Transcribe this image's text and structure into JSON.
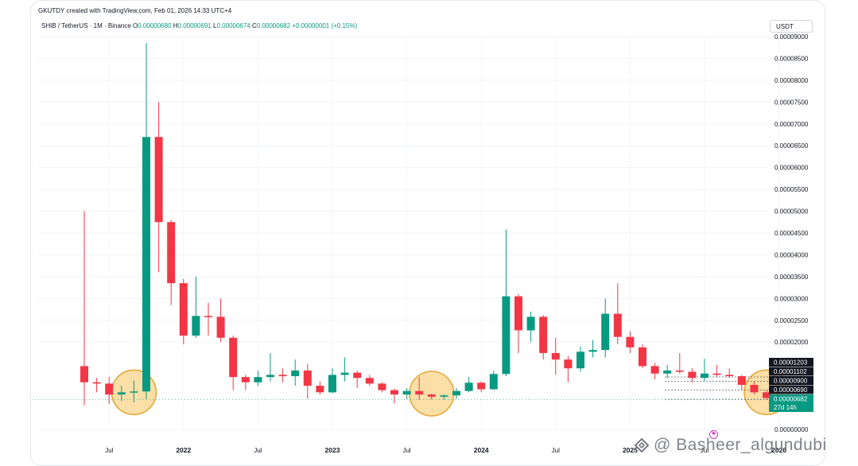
{
  "header": {
    "created_by": "GKUTDY created with TradingView.com, Feb 01, 2026 14:33 UTC+4",
    "symbol": "SHIB / TetherUS · 1M · Binance",
    "o_label": "O",
    "o_value": "0.00000680",
    "h_label": "H",
    "h_value": "0.00000691",
    "l_label": "L",
    "l_value": "0.00000674",
    "c_label": "C",
    "c_value": "0.00000682",
    "change": "+0.00000001 (+0.15%)"
  },
  "currency_button": "USDT",
  "watermark": "@ Basheer_algundubi",
  "flag_icon": "flag-icon",
  "colors": {
    "up": "#089981",
    "down": "#f23645",
    "highlight_fill": "#f9d48a",
    "highlight_stroke": "#e6a93a",
    "label_dark": "#131722",
    "current_label": "#089981"
  },
  "chart_data": {
    "type": "candlestick",
    "title": "SHIB / TetherUS · 1M · Binance",
    "x_tick_labels": [
      "Jul",
      "2022",
      "Jul",
      "2023",
      "Jul",
      "2024",
      "Jul",
      "2025",
      "Jul",
      "2026"
    ],
    "y_tick_labels": [
      "0.00009000",
      "0.00008500",
      "0.00008000",
      "0.00007500",
      "0.00007000",
      "0.00006500",
      "0.00006000",
      "0.00005500",
      "0.00005000",
      "0.00004500",
      "0.00004000",
      "0.00003500",
      "0.00003000",
      "0.00002500",
      "0.00002000",
      "0.00000000"
    ],
    "ylim": [
      0,
      9e-05
    ],
    "grid": true,
    "candles": [
      {
        "date": "2021-05",
        "o": 1.45e-05,
        "h": 5e-05,
        "l": 5.5e-06,
        "c": 1.08e-05
      },
      {
        "date": "2021-06",
        "o": 1.08e-05,
        "h": 1.18e-05,
        "l": 8.5e-06,
        "c": 1.05e-05
      },
      {
        "date": "2021-07",
        "o": 1.05e-05,
        "h": 1.2e-05,
        "l": 5.8e-06,
        "c": 8e-06
      },
      {
        "date": "2021-08",
        "o": 8e-06,
        "h": 1e-05,
        "l": 6.5e-06,
        "c": 8.5e-06
      },
      {
        "date": "2021-09",
        "o": 8.5e-06,
        "h": 1.12e-05,
        "l": 6.2e-06,
        "c": 8.7e-06
      },
      {
        "date": "2021-10",
        "o": 8.7e-06,
        "h": 8.85e-05,
        "l": 7e-06,
        "c": 6.7e-05
      },
      {
        "date": "2021-11",
        "o": 6.7e-05,
        "h": 7.5e-05,
        "l": 3.6e-05,
        "c": 4.75e-05
      },
      {
        "date": "2021-12",
        "o": 4.75e-05,
        "h": 4.8e-05,
        "l": 2.85e-05,
        "c": 3.35e-05
      },
      {
        "date": "2022-01",
        "o": 3.35e-05,
        "h": 3.45e-05,
        "l": 1.95e-05,
        "c": 2.15e-05
      },
      {
        "date": "2022-02",
        "o": 2.15e-05,
        "h": 3.5e-05,
        "l": 2.1e-05,
        "c": 2.6e-05
      },
      {
        "date": "2022-03",
        "o": 2.6e-05,
        "h": 2.9e-05,
        "l": 2.15e-05,
        "c": 2.58e-05
      },
      {
        "date": "2022-04",
        "o": 2.58e-05,
        "h": 3e-05,
        "l": 2e-05,
        "c": 2.1e-05
      },
      {
        "date": "2022-05",
        "o": 2.1e-05,
        "h": 2.15e-05,
        "l": 9e-06,
        "c": 1.2e-05
      },
      {
        "date": "2022-06",
        "o": 1.2e-05,
        "h": 1.25e-05,
        "l": 9e-06,
        "c": 1.08e-05
      },
      {
        "date": "2022-07",
        "o": 1.08e-05,
        "h": 1.35e-05,
        "l": 1e-05,
        "c": 1.2e-05
      },
      {
        "date": "2022-08",
        "o": 1.2e-05,
        "h": 1.75e-05,
        "l": 1.1e-05,
        "c": 1.25e-05
      },
      {
        "date": "2022-09",
        "o": 1.25e-05,
        "h": 1.4e-05,
        "l": 1.08e-05,
        "c": 1.22e-05
      },
      {
        "date": "2022-10",
        "o": 1.22e-05,
        "h": 1.6e-05,
        "l": 1e-05,
        "c": 1.35e-05
      },
      {
        "date": "2022-11",
        "o": 1.35e-05,
        "h": 1.5e-05,
        "l": 7e-06,
        "c": 1e-05
      },
      {
        "date": "2022-12",
        "o": 1e-05,
        "h": 1.1e-05,
        "l": 8e-06,
        "c": 8.5e-06
      },
      {
        "date": "2023-01",
        "o": 8.5e-06,
        "h": 1.4e-05,
        "l": 8.3e-06,
        "c": 1.25e-05
      },
      {
        "date": "2023-02",
        "o": 1.25e-05,
        "h": 1.65e-05,
        "l": 1.1e-05,
        "c": 1.3e-05
      },
      {
        "date": "2023-03",
        "o": 1.3e-05,
        "h": 1.35e-05,
        "l": 9.5e-06,
        "c": 1.18e-05
      },
      {
        "date": "2023-04",
        "o": 1.18e-05,
        "h": 1.25e-05,
        "l": 1e-05,
        "c": 1.05e-05
      },
      {
        "date": "2023-05",
        "o": 1.05e-05,
        "h": 1.08e-05,
        "l": 8.5e-06,
        "c": 9e-06
      },
      {
        "date": "2023-06",
        "o": 9e-06,
        "h": 9.3e-06,
        "l": 6e-06,
        "c": 8e-06
      },
      {
        "date": "2023-07",
        "o": 8e-06,
        "h": 9.5e-06,
        "l": 7e-06,
        "c": 8.8e-06
      },
      {
        "date": "2023-08",
        "o": 8.8e-06,
        "h": 1.2e-05,
        "l": 6.8e-06,
        "c": 8e-06
      },
      {
        "date": "2023-09",
        "o": 8e-06,
        "h": 8.2e-06,
        "l": 6.8e-06,
        "c": 7.5e-06
      },
      {
        "date": "2023-10",
        "o": 7.5e-06,
        "h": 8e-06,
        "l": 6.8e-06,
        "c": 7.8e-06
      },
      {
        "date": "2023-11",
        "o": 7.8e-06,
        "h": 9.5e-06,
        "l": 7e-06,
        "c": 8.8e-06
      },
      {
        "date": "2023-12",
        "o": 8.8e-06,
        "h": 1.2e-05,
        "l": 8.5e-06,
        "c": 1.07e-05
      },
      {
        "date": "2024-01",
        "o": 1.07e-05,
        "h": 1.1e-05,
        "l": 8.5e-06,
        "c": 9.2e-06
      },
      {
        "date": "2024-02",
        "o": 9.2e-06,
        "h": 1.35e-05,
        "l": 9e-06,
        "c": 1.27e-05
      },
      {
        "date": "2024-03",
        "o": 1.27e-05,
        "h": 4.58e-05,
        "l": 1.22e-05,
        "c": 3.05e-05
      },
      {
        "date": "2024-04",
        "o": 3.05e-05,
        "h": 3.1e-05,
        "l": 1.75e-05,
        "c": 2.27e-05
      },
      {
        "date": "2024-05",
        "o": 2.27e-05,
        "h": 2.7e-05,
        "l": 2e-05,
        "c": 2.58e-05
      },
      {
        "date": "2024-06",
        "o": 2.58e-05,
        "h": 2.62e-05,
        "l": 1.6e-05,
        "c": 1.75e-05
      },
      {
        "date": "2024-07",
        "o": 1.75e-05,
        "h": 2.1e-05,
        "l": 1.25e-05,
        "c": 1.6e-05
      },
      {
        "date": "2024-08",
        "o": 1.6e-05,
        "h": 1.68e-05,
        "l": 1.08e-05,
        "c": 1.4e-05
      },
      {
        "date": "2024-09",
        "o": 1.4e-05,
        "h": 1.9e-05,
        "l": 1.32e-05,
        "c": 1.78e-05
      },
      {
        "date": "2024-10",
        "o": 1.78e-05,
        "h": 2.05e-05,
        "l": 1.65e-05,
        "c": 1.82e-05
      },
      {
        "date": "2024-11",
        "o": 1.82e-05,
        "h": 3e-05,
        "l": 1.65e-05,
        "c": 2.65e-05
      },
      {
        "date": "2024-12",
        "o": 2.65e-05,
        "h": 3.35e-05,
        "l": 1.95e-05,
        "c": 2.12e-05
      },
      {
        "date": "2025-01",
        "o": 2.12e-05,
        "h": 2.25e-05,
        "l": 1.75e-05,
        "c": 1.88e-05
      },
      {
        "date": "2025-02",
        "o": 1.88e-05,
        "h": 1.95e-05,
        "l": 1.4e-05,
        "c": 1.45e-05
      },
      {
        "date": "2025-03",
        "o": 1.45e-05,
        "h": 1.52e-05,
        "l": 1.15e-05,
        "c": 1.28e-05
      },
      {
        "date": "2025-04",
        "o": 1.28e-05,
        "h": 1.48e-05,
        "l": 1.18e-05,
        "c": 1.35e-05
      },
      {
        "date": "2025-05",
        "o": 1.35e-05,
        "h": 1.75e-05,
        "l": 1.28e-05,
        "c": 1.32e-05
      },
      {
        "date": "2025-06",
        "o": 1.32e-05,
        "h": 1.4e-05,
        "l": 1.08e-05,
        "c": 1.18e-05
      },
      {
        "date": "2025-07",
        "o": 1.18e-05,
        "h": 1.62e-05,
        "l": 1.1e-05,
        "c": 1.28e-05
      },
      {
        "date": "2025-08",
        "o": 1.28e-05,
        "h": 1.48e-05,
        "l": 1.2e-05,
        "c": 1.25e-05
      },
      {
        "date": "2025-09",
        "o": 1.25e-05,
        "h": 1.4e-05,
        "l": 1.18e-05,
        "c": 1.22e-05
      },
      {
        "date": "2025-10",
        "o": 1.22e-05,
        "h": 1.25e-05,
        "l": 9e-06,
        "c": 1.02e-05
      },
      {
        "date": "2025-11",
        "o": 1.02e-05,
        "h": 1.1e-05,
        "l": 8e-06,
        "c": 8.5e-06
      },
      {
        "date": "2025-12",
        "o": 8.5e-06,
        "h": 9e-06,
        "l": 6.8e-06,
        "c": 7.2e-06
      },
      {
        "date": "2026-01",
        "o": 7.2e-06,
        "h": 1e-05,
        "l": 6.5e-06,
        "c": 6.8e-06
      },
      {
        "date": "2026-02",
        "o": 6.8e-06,
        "h": 6.9e-06,
        "l": 6.7e-06,
        "c": 6.8e-06
      }
    ],
    "price_labels": [
      {
        "text": "0.00001203",
        "value": 1.203e-05,
        "style": "dark"
      },
      {
        "text": "0.00001102",
        "value": 1.102e-05,
        "style": "dark"
      },
      {
        "text": "0.00000900",
        "value": 9e-06,
        "style": "dark"
      },
      {
        "text": "0.00000690",
        "value": 6.9e-06,
        "style": "dark"
      },
      {
        "text": "0.00000682",
        "value": 6.82e-06,
        "style": "current"
      },
      {
        "text": "27d 14h",
        "value": 6.82e-06,
        "style": "countdown"
      }
    ],
    "highlight_circles": [
      {
        "date": "2021-09",
        "price": 8.5e-06
      },
      {
        "date": "2023-09",
        "price": 8.2e-06
      },
      {
        "date": "2025-12",
        "price": 8.5e-06
      }
    ]
  }
}
